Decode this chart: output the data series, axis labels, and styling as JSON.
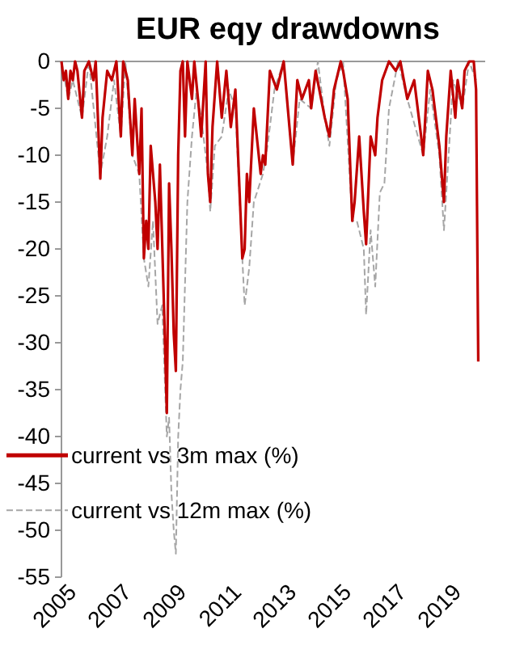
{
  "chart_data": {
    "type": "line",
    "title": "EUR eqy drawdowns",
    "xlim": [
      "2005-01",
      "2020-06"
    ],
    "xticks": [
      {
        "value": "2005",
        "label": "2005"
      },
      {
        "value": "2007",
        "label": "2007"
      },
      {
        "value": "2009",
        "label": "2009"
      },
      {
        "value": "2011",
        "label": "2011"
      },
      {
        "value": "2013",
        "label": "2013"
      },
      {
        "value": "2015",
        "label": "2015"
      },
      {
        "value": "2017",
        "label": "2017"
      },
      {
        "value": "2019",
        "label": "2019"
      }
    ],
    "ylim": [
      -55,
      0
    ],
    "yticks": [
      0,
      -5,
      -10,
      -15,
      -20,
      -25,
      -30,
      -35,
      -40,
      -45,
      -50,
      -55
    ],
    "grid": false,
    "legend": "bottom left",
    "marker": "none",
    "series": [
      {
        "name": "current vs 12m max (%)",
        "color": "#a6a6a6",
        "line_style": "dashed",
        "x": [
          "2005-01",
          "2005-04",
          "2005-06",
          "2005-10",
          "2006-01",
          "2006-06",
          "2006-09",
          "2006-12",
          "2007-03",
          "2007-05",
          "2007-08",
          "2007-11",
          "2008-01",
          "2008-03",
          "2008-05",
          "2008-07",
          "2008-09",
          "2008-10",
          "2008-11",
          "2008-12",
          "2009-01",
          "2009-02",
          "2009-03",
          "2009-04",
          "2009-05",
          "2009-06",
          "2009-08",
          "2009-10",
          "2009-12",
          "2010-02",
          "2010-05",
          "2010-06",
          "2010-08",
          "2010-11",
          "2011-02",
          "2011-05",
          "2011-08",
          "2011-09",
          "2011-11",
          "2012-01",
          "2012-05",
          "2012-07",
          "2012-10",
          "2013-02",
          "2013-06",
          "2013-09",
          "2014-02",
          "2014-05",
          "2014-08",
          "2014-10",
          "2015-01",
          "2015-04",
          "2015-08",
          "2015-10",
          "2016-01",
          "2016-02",
          "2016-04",
          "2016-06",
          "2016-08",
          "2016-10",
          "2016-12",
          "2017-04",
          "2017-08",
          "2018-03",
          "2018-06",
          "2018-10",
          "2018-12",
          "2019-02",
          "2019-04",
          "2019-08",
          "2019-11",
          "2020-02"
        ],
        "values": [
          0,
          -4,
          -2,
          -6,
          0,
          -12,
          -8,
          -2,
          -8,
          0,
          -10,
          -12,
          -21,
          -24,
          -17,
          -28,
          -26,
          -33,
          -40,
          -38,
          -46,
          -50,
          -52.5,
          -40,
          -35,
          -32,
          -15,
          -8,
          -3,
          -6,
          -12,
          -16,
          -9,
          -8,
          -3,
          -5,
          -21,
          -26,
          -22,
          -15,
          -12,
          -9,
          -3,
          0,
          -11,
          -4,
          -5,
          0,
          -6,
          -9,
          -2,
          0,
          -17,
          -17,
          -20,
          -27,
          -18,
          -24,
          -14,
          -13,
          -5,
          0,
          -4,
          -10,
          -3,
          -10,
          -18,
          -10,
          -2,
          -5,
          0,
          -2
        ]
      },
      {
        "name": "current vs 3m max (%)",
        "color": "#c00000",
        "line_style": "solid",
        "x": [
          "2005-01",
          "2005-02",
          "2005-03",
          "2005-04",
          "2005-05",
          "2005-06",
          "2005-07",
          "2005-08",
          "2005-10",
          "2005-11",
          "2006-01",
          "2006-03",
          "2006-04",
          "2006-06",
          "2006-07",
          "2006-09",
          "2006-11",
          "2007-01",
          "2007-03",
          "2007-04",
          "2007-06",
          "2007-08",
          "2007-09",
          "2007-11",
          "2007-12",
          "2008-01",
          "2008-02",
          "2008-03",
          "2008-04",
          "2008-06",
          "2008-07",
          "2008-08",
          "2008-10",
          "2008-11",
          "2008-12",
          "2009-01",
          "2009-02",
          "2009-03",
          "2009-04",
          "2009-05",
          "2009-06",
          "2009-07",
          "2009-08",
          "2009-10",
          "2009-11",
          "2010-01",
          "2010-02",
          "2010-04",
          "2010-05",
          "2010-06",
          "2010-07",
          "2010-09",
          "2010-11",
          "2011-01",
          "2011-03",
          "2011-05",
          "2011-08",
          "2011-09",
          "2011-10",
          "2011-11",
          "2012-01",
          "2012-04",
          "2012-05",
          "2012-06",
          "2012-08",
          "2012-11",
          "2013-02",
          "2013-06",
          "2013-08",
          "2013-10",
          "2014-01",
          "2014-02",
          "2014-04",
          "2014-08",
          "2014-10",
          "2014-12",
          "2015-03",
          "2015-04",
          "2015-06",
          "2015-08",
          "2015-09",
          "2015-11",
          "2016-01",
          "2016-02",
          "2016-04",
          "2016-06",
          "2016-07",
          "2016-09",
          "2016-12",
          "2017-03",
          "2017-05",
          "2017-08",
          "2017-11",
          "2018-02",
          "2018-03",
          "2018-05",
          "2018-07",
          "2018-10",
          "2018-12",
          "2019-01",
          "2019-03",
          "2019-05",
          "2019-06",
          "2019-08",
          "2019-09",
          "2019-11",
          "2020-01",
          "2020-02",
          "2020-03"
        ],
        "values": [
          0,
          -2,
          -1,
          -4,
          -1,
          -2,
          0,
          -1,
          -6,
          -1,
          0,
          -2,
          0,
          -12.5,
          -6,
          -1,
          -2,
          0,
          -8,
          0,
          -2,
          -10,
          -4,
          -12,
          -5,
          -21,
          -17,
          -20,
          -9,
          -15,
          -20,
          -11,
          -28,
          -37.5,
          -13,
          -20,
          -29,
          -33,
          -10,
          -1,
          0,
          -8,
          0,
          -4,
          0,
          -5,
          -8,
          0,
          -12,
          -15,
          -7,
          0,
          -6,
          -1,
          -7,
          -3,
          -21,
          -20,
          -12,
          -15,
          -5,
          -12,
          -10,
          -11,
          -1,
          -3,
          0,
          -11,
          -2,
          -4,
          -2,
          -5,
          -1,
          -6,
          -8,
          -3,
          0,
          -1,
          -4,
          -17,
          -15,
          -8,
          -16,
          -19.5,
          -8,
          -10,
          -6,
          -2,
          0,
          -1,
          0,
          -4,
          -2,
          -8,
          -10,
          -1,
          -3,
          -9,
          -15,
          -8,
          -1,
          -6,
          -2,
          -5,
          -1,
          0,
          0,
          -3,
          -32
        ]
      }
    ]
  }
}
